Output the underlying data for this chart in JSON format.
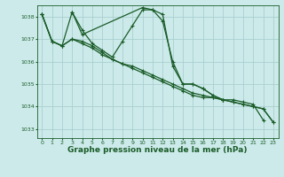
{
  "background_color": "#cceaea",
  "grid_color": "#aacfcf",
  "line_color": "#1a5c28",
  "xlabel": "Graphe pression niveau de la mer (hPa)",
  "xlabel_fontsize": 6.5,
  "ylim": [
    1032.6,
    1038.5
  ],
  "xlim": [
    -0.5,
    23.5
  ],
  "yticks": [
    1033,
    1034,
    1035,
    1036,
    1037,
    1038
  ],
  "xticks": [
    0,
    1,
    2,
    3,
    4,
    5,
    6,
    7,
    8,
    9,
    10,
    11,
    12,
    13,
    14,
    15,
    16,
    17,
    18,
    19,
    20,
    21,
    22,
    23
  ],
  "series": [
    [
      1038.1,
      1036.9,
      1036.7,
      1038.2,
      1037.4,
      1036.8,
      1036.5,
      1036.2,
      1036.9,
      1037.6,
      1038.3,
      1038.3,
      1038.1,
      1035.8,
      1035.0,
      1035.0,
      1034.8,
      1034.5,
      1034.3,
      1034.3,
      1034.2,
      1034.1,
      1033.4,
      null
    ],
    [
      null,
      null,
      null,
      1038.2,
      1037.2,
      null,
      null,
      null,
      null,
      null,
      1038.4,
      1038.3,
      1037.8,
      1036.0,
      1035.0,
      1035.0,
      1034.8,
      1034.5,
      1034.3,
      null,
      null,
      null,
      null,
      null
    ],
    [
      1038.1,
      1036.9,
      1036.7,
      1037.0,
      1036.8,
      1036.6,
      1036.3,
      1036.1,
      1035.9,
      1035.7,
      1035.5,
      1035.3,
      1035.1,
      1034.9,
      1034.7,
      1034.5,
      1034.4,
      1034.4,
      1034.3,
      1034.2,
      1034.1,
      1034.0,
      1033.9,
      1033.3
    ],
    [
      1038.1,
      1036.9,
      1036.7,
      1037.0,
      1036.9,
      1036.7,
      1036.4,
      1036.1,
      1035.9,
      1035.8,
      1035.6,
      1035.4,
      1035.2,
      1035.0,
      1034.8,
      1034.6,
      1034.5,
      1034.4,
      1034.3,
      1034.2,
      1034.1,
      1034.0,
      1033.9,
      1033.3
    ]
  ],
  "marker": "+",
  "markersize": 3.5,
  "linewidth": 0.9
}
